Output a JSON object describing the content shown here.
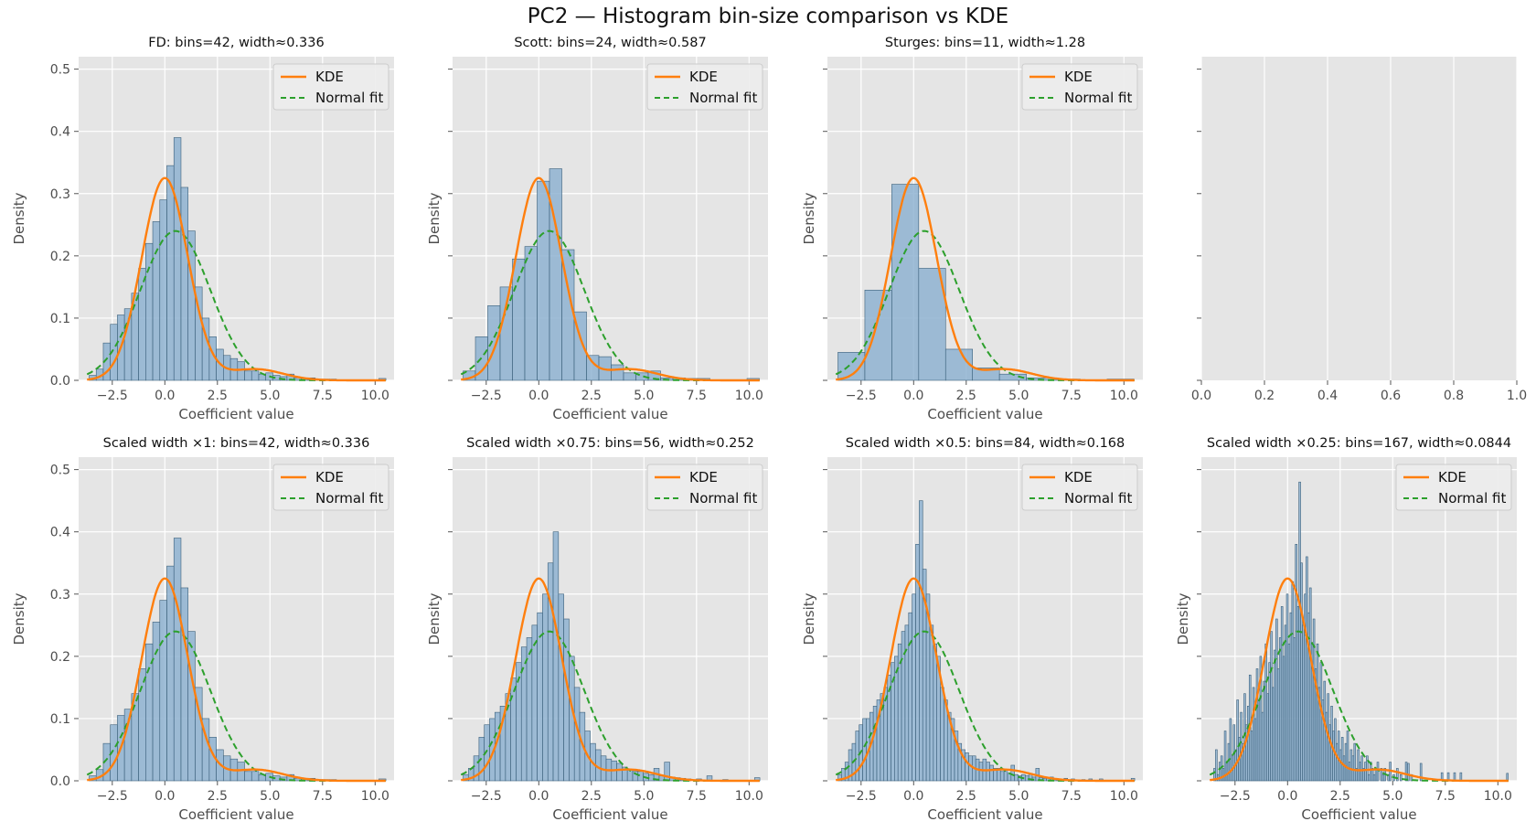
{
  "figure": {
    "title": "PC2 — Histogram bin-size comparison vs KDE"
  },
  "colors": {
    "background": "#e5e5e5",
    "grid": "#ffffff",
    "bar_fill": "#8fb3d1",
    "bar_edge": "#3a5f7a",
    "kde": "#ff7f0e",
    "normal": "#2ca02c",
    "text": "#4d4d4d",
    "tick": "#555555"
  },
  "chart_data": [
    {
      "type": "bar",
      "title": "FD: bins=42, width≈0.336",
      "xlabel": "Coefficient value",
      "ylabel": "Density",
      "xlim": [
        -4.1,
        10.9
      ],
      "ylim": [
        0,
        0.52
      ],
      "xticks": [
        "−2.5",
        "0.0",
        "2.5",
        "5.0",
        "7.5",
        "10.0"
      ],
      "yticks": [
        "0.0",
        "0.1",
        "0.2",
        "0.3",
        "0.4",
        "0.5"
      ],
      "grid": true,
      "legend": "top-right",
      "legend_labels": [
        "KDE",
        "Normal fit"
      ],
      "bins": 42,
      "bin_start": -3.6,
      "bin_width": 0.336,
      "values": [
        0.008,
        0.018,
        0.06,
        0.09,
        0.105,
        0.115,
        0.14,
        0.18,
        0.22,
        0.255,
        0.29,
        0.345,
        0.39,
        0.31,
        0.24,
        0.15,
        0.1,
        0.07,
        0.05,
        0.04,
        0.035,
        0.03,
        0.015,
        0.015,
        0.01,
        0.012,
        0.008,
        0.006,
        0.01,
        0.004,
        0.003,
        0.004,
        0.002,
        0.002,
        0.002,
        0.0,
        0.0,
        0.0,
        0.0,
        0.0,
        0.0,
        0.003
      ],
      "kde": {
        "mu": 0,
        "sigma": 1.1,
        "peak": 0.325,
        "tail_amp": 0.018,
        "tail_mu": 4.3,
        "tail_sigma": 1.3
      },
      "normal_fit": {
        "mu": 0.5,
        "sigma": 1.66,
        "peak": 0.24
      }
    },
    {
      "type": "bar",
      "title": "Scott: bins=24, width≈0.587",
      "xlabel": "Coefficient value",
      "ylabel": "Density",
      "xlim": [
        -4.1,
        10.9
      ],
      "ylim": [
        0,
        0.52
      ],
      "xticks": [
        "−2.5",
        "0.0",
        "2.5",
        "5.0",
        "7.5",
        "10.0"
      ],
      "yticks": [],
      "grid": true,
      "legend": "top-right",
      "legend_labels": [
        "KDE",
        "Normal fit"
      ],
      "bins": 24,
      "bin_start": -3.6,
      "bin_width": 0.587,
      "values": [
        0.015,
        0.07,
        0.12,
        0.15,
        0.195,
        0.215,
        0.32,
        0.34,
        0.21,
        0.11,
        0.04,
        0.038,
        0.025,
        0.012,
        0.012,
        0.015,
        0.004,
        0.004,
        0.003,
        0.003,
        0.0,
        0.0,
        0.0,
        0.003
      ],
      "kde": {
        "mu": 0,
        "sigma": 1.1,
        "peak": 0.325,
        "tail_amp": 0.018,
        "tail_mu": 4.3,
        "tail_sigma": 1.3
      },
      "normal_fit": {
        "mu": 0.5,
        "sigma": 1.66,
        "peak": 0.24
      }
    },
    {
      "type": "bar",
      "title": "Sturges: bins=11, width≈1.28",
      "xlabel": "Coefficient value",
      "ylabel": "Density",
      "xlim": [
        -4.1,
        10.9
      ],
      "ylim": [
        0,
        0.52
      ],
      "xticks": [
        "−2.5",
        "0.0",
        "2.5",
        "5.0",
        "7.5",
        "10.0"
      ],
      "yticks": [],
      "grid": true,
      "legend": "top-right",
      "legend_labels": [
        "KDE",
        "Normal fit"
      ],
      "bins": 11,
      "bin_start": -3.6,
      "bin_width": 1.28,
      "values": [
        0.045,
        0.145,
        0.315,
        0.18,
        0.05,
        0.02,
        0.01,
        0.004,
        0.002,
        0.0,
        0.002
      ],
      "kde": {
        "mu": 0,
        "sigma": 1.1,
        "peak": 0.325,
        "tail_amp": 0.018,
        "tail_mu": 4.3,
        "tail_sigma": 1.3
      },
      "normal_fit": {
        "mu": 0.5,
        "sigma": 1.66,
        "peak": 0.24
      }
    },
    {
      "type": "empty",
      "title": "",
      "xlim": [
        0,
        1
      ],
      "xticks": [
        "0.0",
        "0.2",
        "0.4",
        "0.6",
        "0.8",
        "1.0"
      ],
      "yticks": [],
      "grid": true
    },
    {
      "type": "bar",
      "title": "Scaled width ×1: bins=42, width≈0.336",
      "xlabel": "Coefficient value",
      "ylabel": "Density",
      "xlim": [
        -4.1,
        10.9
      ],
      "ylim": [
        0,
        0.52
      ],
      "xticks": [
        "−2.5",
        "0.0",
        "2.5",
        "5.0",
        "7.5",
        "10.0"
      ],
      "yticks": [
        "0.0",
        "0.1",
        "0.2",
        "0.3",
        "0.4",
        "0.5"
      ],
      "grid": true,
      "legend": "top-right",
      "legend_labels": [
        "KDE",
        "Normal fit"
      ],
      "bins": 42,
      "bin_start": -3.6,
      "bin_width": 0.336,
      "values": [
        0.008,
        0.018,
        0.06,
        0.09,
        0.105,
        0.115,
        0.14,
        0.18,
        0.22,
        0.255,
        0.29,
        0.345,
        0.39,
        0.31,
        0.24,
        0.15,
        0.1,
        0.07,
        0.05,
        0.04,
        0.035,
        0.03,
        0.015,
        0.015,
        0.01,
        0.012,
        0.008,
        0.006,
        0.01,
        0.004,
        0.003,
        0.004,
        0.002,
        0.002,
        0.002,
        0.0,
        0.0,
        0.0,
        0.0,
        0.0,
        0.0,
        0.003
      ],
      "kde": {
        "mu": 0,
        "sigma": 1.1,
        "peak": 0.325,
        "tail_amp": 0.018,
        "tail_mu": 4.3,
        "tail_sigma": 1.3
      },
      "normal_fit": {
        "mu": 0.5,
        "sigma": 1.66,
        "peak": 0.24
      }
    },
    {
      "type": "bar",
      "title": "Scaled width ×0.75: bins=56, width≈0.252",
      "xlabel": "Coefficient value",
      "ylabel": "Density",
      "xlim": [
        -4.1,
        10.9
      ],
      "ylim": [
        0,
        0.52
      ],
      "xticks": [
        "−2.5",
        "0.0",
        "2.5",
        "5.0",
        "7.5",
        "10.0"
      ],
      "yticks": [],
      "grid": true,
      "legend": "top-right",
      "legend_labels": [
        "KDE",
        "Normal fit"
      ],
      "bins": 56,
      "bin_start": -3.6,
      "bin_width": 0.252,
      "values": [
        0.01,
        0.02,
        0.04,
        0.07,
        0.09,
        0.1,
        0.11,
        0.12,
        0.14,
        0.165,
        0.19,
        0.215,
        0.23,
        0.25,
        0.27,
        0.3,
        0.35,
        0.4,
        0.3,
        0.26,
        0.2,
        0.15,
        0.11,
        0.08,
        0.06,
        0.05,
        0.04,
        0.035,
        0.032,
        0.028,
        0.022,
        0.018,
        0.015,
        0.015,
        0.012,
        0.01,
        0.02,
        0.008,
        0.03,
        0.006,
        0.005,
        0.004,
        0.003,
        0.0,
        0.003,
        0.0,
        0.008,
        0.0,
        0.0,
        0.002,
        0.0,
        0.0,
        0.0,
        0.0,
        0.0,
        0.005
      ],
      "kde": {
        "mu": 0,
        "sigma": 1.1,
        "peak": 0.325,
        "tail_amp": 0.018,
        "tail_mu": 4.3,
        "tail_sigma": 1.3
      },
      "normal_fit": {
        "mu": 0.5,
        "sigma": 1.66,
        "peak": 0.24
      }
    },
    {
      "type": "bar",
      "title": "Scaled width ×0.5: bins=84, width≈0.168",
      "xlabel": "Coefficient value",
      "ylabel": "Density",
      "xlim": [
        -4.1,
        10.9
      ],
      "ylim": [
        0,
        0.52
      ],
      "xticks": [
        "−2.5",
        "0.0",
        "2.5",
        "5.0",
        "7.5",
        "10.0"
      ],
      "yticks": [],
      "grid": true,
      "legend": "top-right",
      "legend_labels": [
        "KDE",
        "Normal fit"
      ],
      "bins": 84,
      "bin_start": -3.6,
      "bin_width": 0.168,
      "values": [
        0.01,
        0.02,
        0.03,
        0.05,
        0.06,
        0.08,
        0.09,
        0.1,
        0.1,
        0.11,
        0.12,
        0.13,
        0.14,
        0.15,
        0.17,
        0.19,
        0.2,
        0.22,
        0.24,
        0.25,
        0.27,
        0.3,
        0.38,
        0.45,
        0.34,
        0.3,
        0.25,
        0.22,
        0.2,
        0.15,
        0.13,
        0.11,
        0.1,
        0.08,
        0.06,
        0.05,
        0.045,
        0.04,
        0.04,
        0.035,
        0.03,
        0.035,
        0.03,
        0.025,
        0.02,
        0.02,
        0.015,
        0.015,
        0.012,
        0.025,
        0.01,
        0.008,
        0.01,
        0.008,
        0.012,
        0.006,
        0.02,
        0.005,
        0.004,
        0.004,
        0.006,
        0.003,
        0.003,
        0.002,
        0.004,
        0.0,
        0.003,
        0.0,
        0.0,
        0.002,
        0.0,
        0.003,
        0.0,
        0.0,
        0.003,
        0.0,
        0.0,
        0.0,
        0.0,
        0.0,
        0.0,
        0.0,
        0.0,
        0.004
      ],
      "kde": {
        "mu": 0,
        "sigma": 1.1,
        "peak": 0.325,
        "tail_amp": 0.018,
        "tail_mu": 4.3,
        "tail_sigma": 1.3
      },
      "normal_fit": {
        "mu": 0.5,
        "sigma": 1.66,
        "peak": 0.24
      }
    },
    {
      "type": "bar",
      "title": "Scaled width ×0.25: bins=167, width≈0.0844",
      "xlabel": "Coefficient value",
      "ylabel": "Density",
      "xlim": [
        -4.1,
        10.9
      ],
      "ylim": [
        0,
        0.52
      ],
      "xticks": [
        "−2.5",
        "0.0",
        "2.5",
        "5.0",
        "7.5",
        "10.0"
      ],
      "yticks": [],
      "grid": true,
      "legend": "top-right",
      "legend_labels": [
        "KDE",
        "Normal fit"
      ],
      "bins": 167,
      "bin_start": -3.6,
      "bin_width": 0.0844,
      "values": [
        0.0,
        0.02,
        0.05,
        0.01,
        0.03,
        0.04,
        0.02,
        0.08,
        0.03,
        0.06,
        0.1,
        0.04,
        0.09,
        0.05,
        0.13,
        0.07,
        0.11,
        0.06,
        0.14,
        0.09,
        0.12,
        0.17,
        0.08,
        0.15,
        0.1,
        0.18,
        0.13,
        0.2,
        0.11,
        0.16,
        0.22,
        0.14,
        0.19,
        0.24,
        0.15,
        0.21,
        0.26,
        0.18,
        0.23,
        0.28,
        0.2,
        0.25,
        0.3,
        0.22,
        0.27,
        0.32,
        0.23,
        0.38,
        0.28,
        0.48,
        0.35,
        0.25,
        0.3,
        0.36,
        0.27,
        0.31,
        0.22,
        0.26,
        0.18,
        0.22,
        0.15,
        0.19,
        0.13,
        0.16,
        0.11,
        0.14,
        0.09,
        0.12,
        0.08,
        0.1,
        0.06,
        0.08,
        0.05,
        0.07,
        0.04,
        0.06,
        0.08,
        0.03,
        0.05,
        0.04,
        0.06,
        0.02,
        0.05,
        0.03,
        0.04,
        0.02,
        0.03,
        0.04,
        0.01,
        0.03,
        0.02,
        0.01,
        0.02,
        0.03,
        0.0,
        0.02,
        0.01,
        0.02,
        0.0,
        0.01,
        0.03,
        0.0,
        0.01,
        0.0,
        0.02,
        0.0,
        0.01,
        0.0,
        0.0,
        0.03,
        0.0,
        0.0,
        0.01,
        0.0,
        0.0,
        0.0,
        0.0,
        0.0,
        0.0,
        0.0,
        0.0,
        0.0,
        0.0,
        0.0,
        0.0,
        0.0,
        0.0,
        0.0,
        0.0,
        0.0,
        0.0,
        0.0,
        0.0,
        0.0,
        0.0,
        0.0,
        0.0,
        0.0,
        0.0,
        0.0,
        0.0,
        0.0,
        0.0,
        0.0,
        0.0,
        0.0,
        0.0,
        0.0,
        0.0,
        0.0,
        0.0,
        0.0,
        0.0,
        0.0,
        0.0,
        0.0,
        0.0,
        0.0,
        0.0,
        0.0,
        0.0,
        0.0,
        0.0,
        0.0,
        0.0,
        0.0,
        0.012
      ],
      "extra_bars": [
        {
          "x": 5.7,
          "value": 0.028
        },
        {
          "x": 6.3,
          "value": 0.028
        },
        {
          "x": 7.3,
          "value": 0.013
        },
        {
          "x": 7.6,
          "value": 0.013
        },
        {
          "x": 7.9,
          "value": 0.013
        },
        {
          "x": 8.2,
          "value": 0.013
        }
      ],
      "kde": {
        "mu": 0,
        "sigma": 1.1,
        "peak": 0.325,
        "tail_amp": 0.018,
        "tail_mu": 4.3,
        "tail_sigma": 1.3
      },
      "normal_fit": {
        "mu": 0.5,
        "sigma": 1.66,
        "peak": 0.24
      }
    }
  ]
}
